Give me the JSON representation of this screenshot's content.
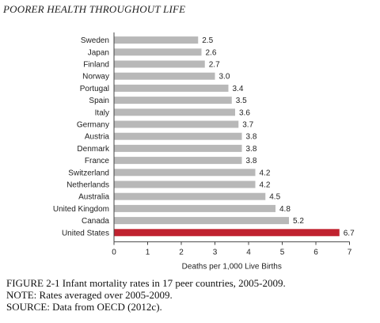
{
  "header": "POORER HEALTH THROUGHOUT LIFE",
  "chart_data": {
    "type": "bar",
    "orientation": "horizontal",
    "categories": [
      "Sweden",
      "Japan",
      "Finland",
      "Norway",
      "Portugal",
      "Spain",
      "Italy",
      "Germany",
      "Austria",
      "Denmark",
      "France",
      "Switzerland",
      "Netherlands",
      "Australia",
      "United Kingdom",
      "Canada",
      "United States"
    ],
    "values": [
      2.5,
      2.6,
      2.7,
      3.0,
      3.4,
      3.5,
      3.6,
      3.7,
      3.8,
      3.8,
      3.8,
      4.2,
      4.2,
      4.5,
      4.8,
      5.2,
      6.7
    ],
    "value_labels": [
      "2.5",
      "2.6",
      "2.7",
      "3.0",
      "3.4",
      "3.5",
      "3.6",
      "3.7",
      "3.8",
      "3.8",
      "3.8",
      "4.2",
      "4.2",
      "4.5",
      "4.8",
      "5.2",
      "6.7"
    ],
    "xlabel": "Deaths per 1,000 Live Births",
    "ylabel": "",
    "xlim": [
      0,
      7
    ],
    "xticks": [
      "0",
      "1",
      "2",
      "3",
      "4",
      "5",
      "6",
      "7"
    ],
    "grid": false,
    "bar_color": "#b8b8b8",
    "highlight_color": "#c0222f",
    "highlight_category": "United States"
  },
  "caption": {
    "line1": "FIGURE 2-1  Infant mortality rates in 17 peer countries, 2005-2009.",
    "line2": "NOTE: Rates averaged over 2005-2009.",
    "line3": "SOURCE: Data from OECD (2012c)."
  }
}
